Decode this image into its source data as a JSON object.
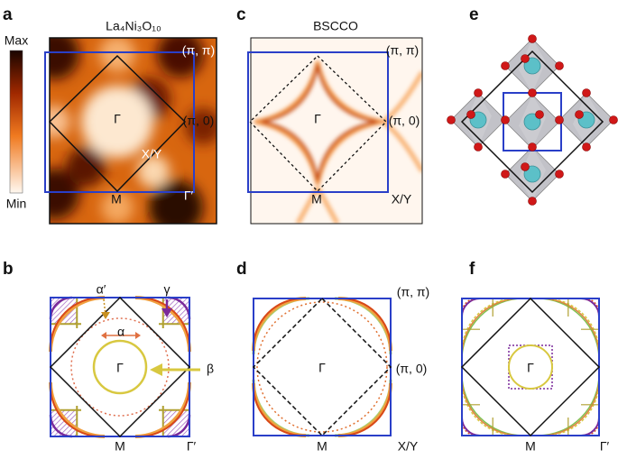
{
  "panels": [
    {
      "label": "a",
      "title": "La₄Ni₃O₁₀",
      "colorbar": {
        "max": "Max",
        "min": "Min"
      },
      "annotations": [
        "(π, π)",
        "(π, 0)",
        "Γ",
        "X/Y",
        "M",
        "Γ′"
      ]
    },
    {
      "label": "b",
      "annotations": [
        "α′",
        "γ",
        "α",
        "β",
        "Γ",
        "M",
        "Γ′"
      ]
    },
    {
      "label": "c",
      "title": "BSCCO",
      "annotations": [
        "(π, π)",
        "Γ",
        "(π, 0)",
        "M",
        "X/Y"
      ]
    },
    {
      "label": "d",
      "annotations": [
        "(π, π)",
        "Γ",
        "(π, 0)",
        "M",
        "X/Y"
      ]
    },
    {
      "label": "e"
    },
    {
      "label": "f",
      "annotations": [
        "Γ",
        "M",
        "Γ′"
      ]
    }
  ]
}
